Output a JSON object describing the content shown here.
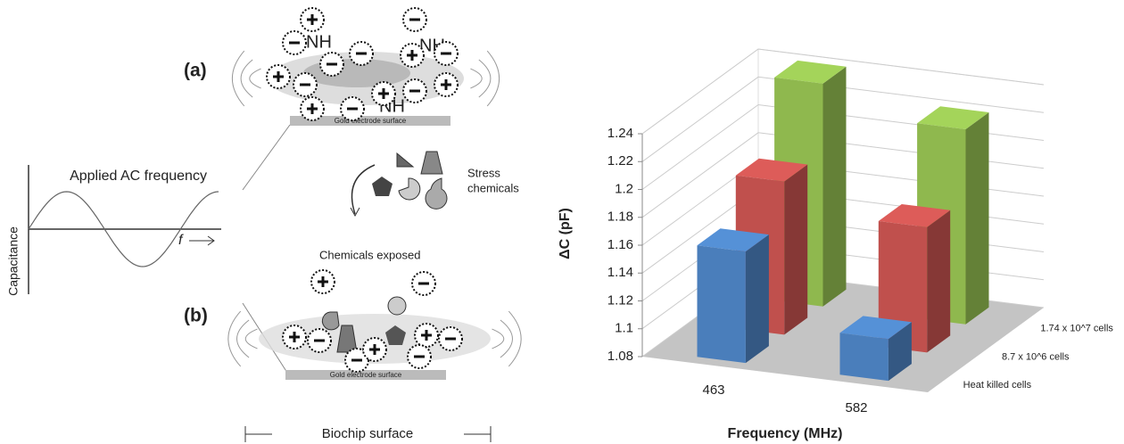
{
  "diagram": {
    "panel_a": "(a)",
    "panel_b": "(b)",
    "amine_labels": [
      "NH",
      "NH",
      "NH"
    ],
    "electrode_labels": [
      "Gold electrode surface",
      "Gold electrode surface"
    ],
    "stress_label": [
      "Stress",
      "chemicals"
    ],
    "exposed_label": "Chemicals exposed",
    "signal_title": "Applied AC frequency",
    "signal_y_label": "Capacitance",
    "signal_x_label": "f",
    "biochip_label": "Biochip surface"
  },
  "chart_data": {
    "type": "bar3d",
    "y_label": "ΔC (pF)",
    "x_label": "Frequency (MHz)",
    "categories": [
      "463",
      "582"
    ],
    "series": [
      {
        "name": "Heat killed cells",
        "color": "#4a7ebb",
        "values": [
          1.16,
          1.11
        ]
      },
      {
        "name": "8.7 x 10^6 cells",
        "color": "#c0504d",
        "values": [
          1.19,
          1.17
        ]
      },
      {
        "name": "1.74 x 10^7 cells",
        "color": "#8fb84e",
        "values": [
          1.24,
          1.22
        ]
      }
    ],
    "ylim": [
      1.08,
      1.24
    ],
    "yticks": [
      1.08,
      1.1,
      1.12,
      1.14,
      1.16,
      1.18,
      1.2,
      1.22,
      1.24
    ],
    "grid": true
  }
}
